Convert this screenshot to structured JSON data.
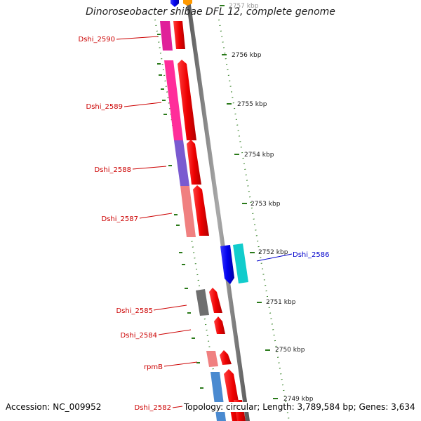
{
  "title": "Dinoroseobacter shibae DFL 12, complete genome",
  "footer": {
    "accession": "Accession: NC_009952",
    "summary": "Topology: circular; Length: 3,789,584 bp; Genes: 3,634"
  },
  "colors": {
    "backbone": "#888888",
    "tick": "#2a7a1a",
    "left_label": "#cc0000",
    "right_label": "#0000cc",
    "leader_right": "#0000cc"
  },
  "scale_labels": [
    "2757 kbp",
    "2756 kbp",
    "2755 kbp",
    "2754 kbp",
    "2753 kbp",
    "2752 kbp",
    "2751 kbp",
    "2750 kbp",
    "2749 kbp"
  ],
  "genes_left": [
    {
      "name": "Dshi_2590",
      "color": "#e0209a"
    },
    {
      "name": "Dshi_2589",
      "color": "#ff2d9a"
    },
    {
      "name": "Dshi_2588",
      "color": "#7a5ad0"
    },
    {
      "name": "Dshi_2587",
      "color": "#f08080"
    },
    {
      "name": "Dshi_2585",
      "color": "#6e6e6e"
    },
    {
      "name": "Dshi_2584",
      "color": ""
    },
    {
      "name": "rpmB",
      "color": "#f08080"
    },
    {
      "name": "Dshi_2582",
      "color": "#4a8ad0"
    }
  ],
  "genes_right": [
    {
      "name": "Dshi_2586",
      "color": "#11cccc"
    }
  ]
}
